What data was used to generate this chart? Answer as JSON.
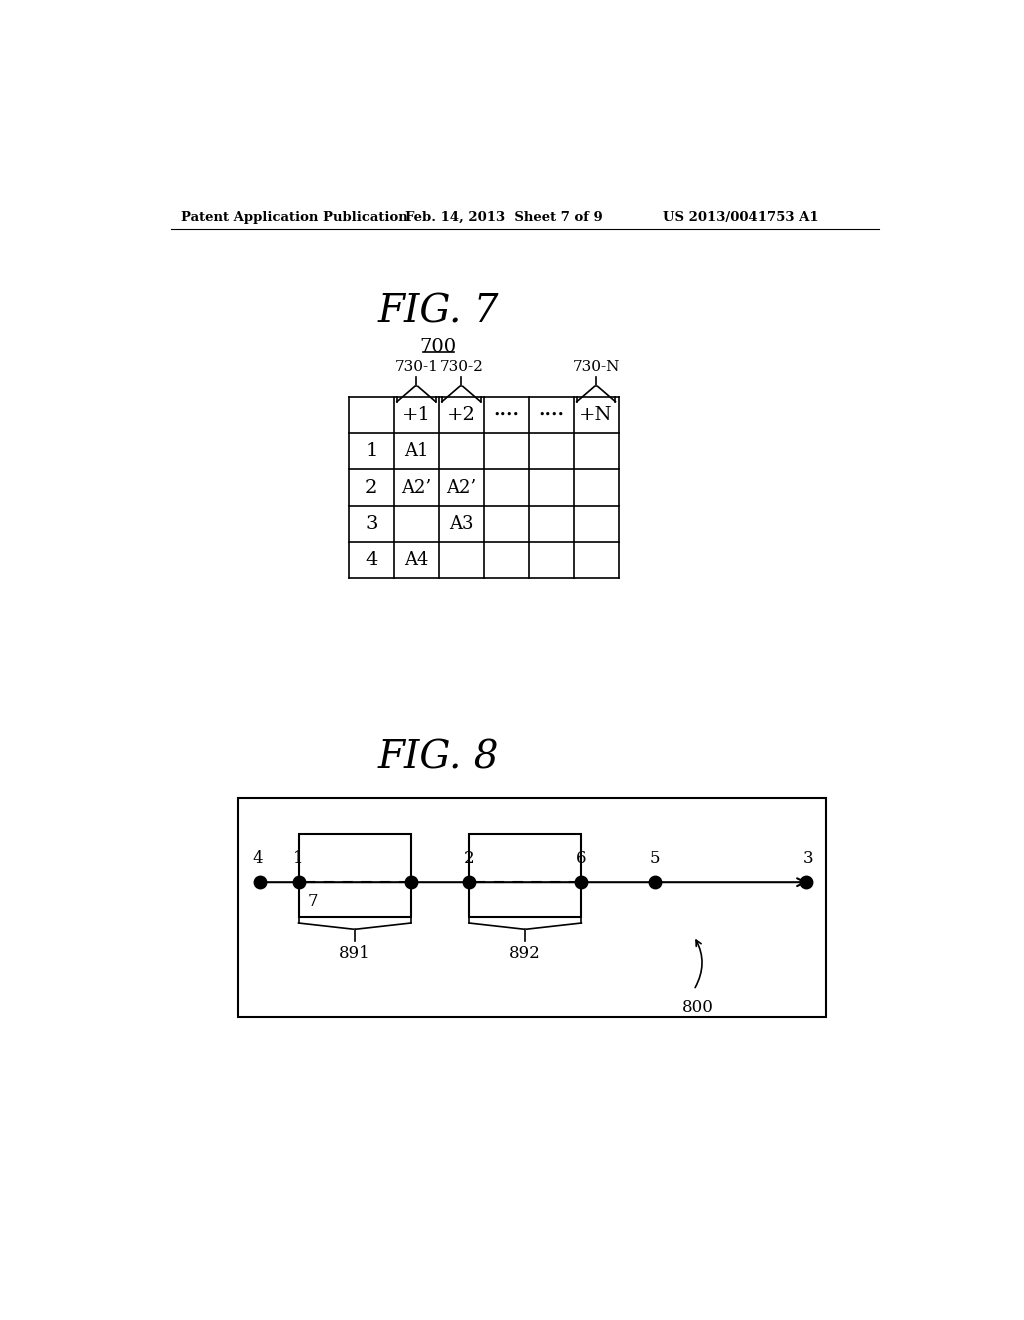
{
  "header_text_left": "Patent Application Publication",
  "header_text_mid": "Feb. 14, 2013  Sheet 7 of 9",
  "header_text_right": "US 2013/0041753 A1",
  "fig7_title": "FIG. 7",
  "fig7_label": "700",
  "fig8_title": "FIG. 8",
  "table_col_labels": [
    "",
    "+1",
    "+2",
    "••••",
    "••••",
    "+N"
  ],
  "table_row_labels": [
    "1",
    "2",
    "3",
    "4"
  ],
  "table_data": [
    [
      "A1",
      "",
      "",
      "",
      ""
    ],
    [
      "A2’",
      "A2’",
      "",
      "",
      ""
    ],
    [
      "",
      "A3",
      "",
      "",
      ""
    ],
    [
      "A4",
      "",
      "",
      "",
      ""
    ]
  ],
  "bracket_labels": [
    "730-1",
    "730-2",
    "730-N"
  ],
  "fig8_outer_label": "800",
  "fig8_box1_label": "891",
  "fig8_box2_label": "892",
  "bg_color": "#ffffff"
}
